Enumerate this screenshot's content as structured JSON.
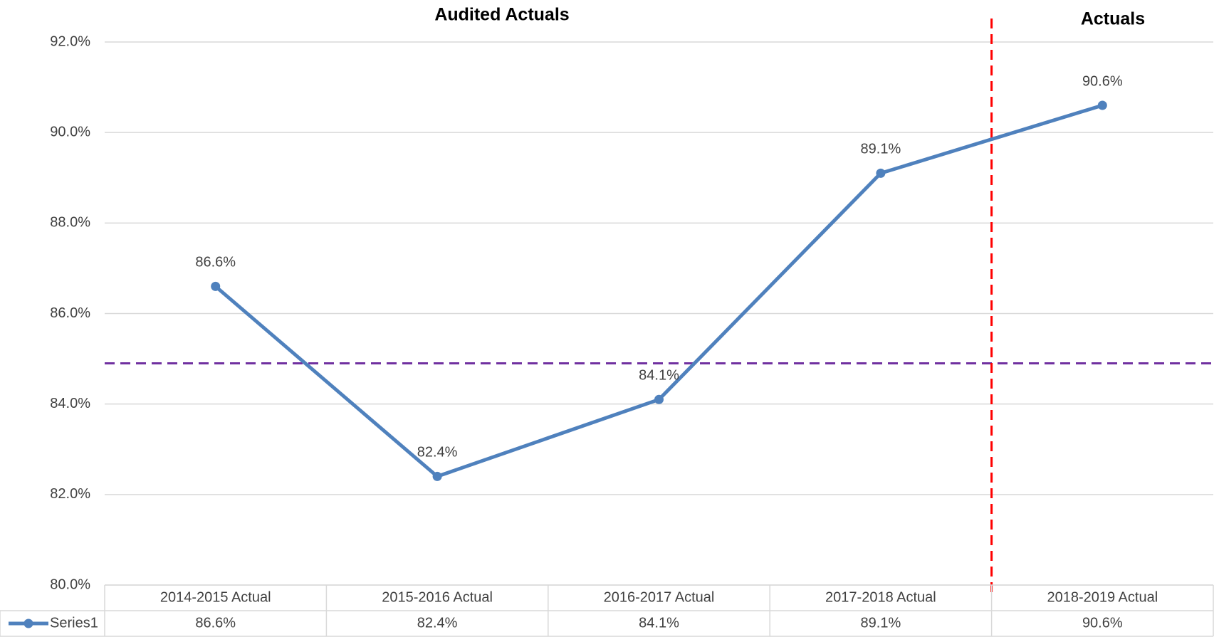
{
  "chart_data": {
    "type": "line",
    "titles": [
      "Audited Actuals",
      "Actuals"
    ],
    "categories": [
      "2014-2015 Actual",
      "2015-2016 Actual",
      "2016-2017 Actual",
      "2017-2018 Actual",
      "2018-2019 Actual"
    ],
    "series": [
      {
        "name": "Series1",
        "color": "#4f81bd",
        "values": [
          86.6,
          82.4,
          84.1,
          89.1,
          90.6
        ],
        "value_labels": [
          "86.6%",
          "82.4%",
          "84.1%",
          "89.1%",
          "90.6%"
        ]
      }
    ],
    "ylim": [
      80,
      92
    ],
    "yticks": [
      {
        "value": 80,
        "label": "80.0%"
      },
      {
        "value": 82,
        "label": "82.0%"
      },
      {
        "value": 84,
        "label": "84.0%"
      },
      {
        "value": 86,
        "label": "86.0%"
      },
      {
        "value": 88,
        "label": "88.0%"
      },
      {
        "value": 90,
        "label": "90.0%"
      },
      {
        "value": 92,
        "label": "92.0%"
      }
    ],
    "grid": true,
    "reference_line": {
      "value": 84.9,
      "color": "#7030a0"
    },
    "data_table": true
  }
}
